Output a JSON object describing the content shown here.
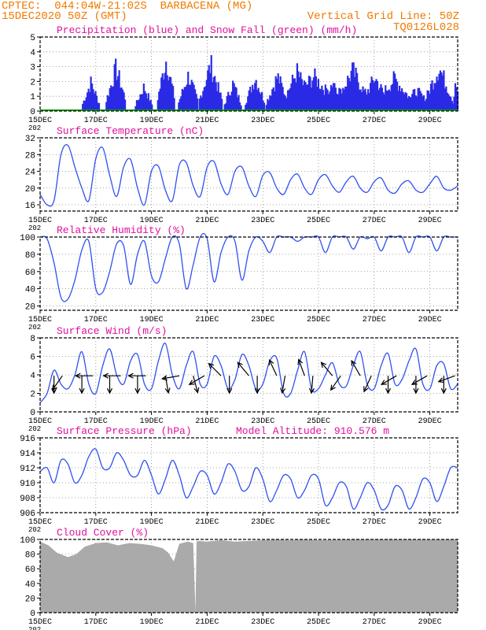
{
  "header": {
    "line1_left": "CPTEC:  044:04W-21:02S  BARBACENA (MG)",
    "line2_left": "15DEC2020 50Z (GMT)",
    "line2_right": "Vertical Grid Line: 50Z",
    "line3_right": "TQ0126L028"
  },
  "colors": {
    "header": "#f07a00",
    "title": "#e0119e",
    "line": "#3050f0",
    "precip": "#2a2ae6",
    "snow": "#00a000",
    "cloud": "#aaaaaa",
    "arrow": "#000000",
    "grid": "#888888"
  },
  "x_ticks": [
    "15DEC",
    "17DEC",
    "19DEC",
    "21DEC",
    "23DEC",
    "25DEC",
    "27DEC",
    "29DEC"
  ],
  "x_tick_days": [
    0,
    2,
    4,
    6,
    8,
    10,
    12,
    14
  ],
  "x_underlabel": "202",
  "x_range_days": [
    0,
    15
  ],
  "chart_data": [
    {
      "type": "bar",
      "title": "Precipitation (blue) and Snow Fall (green) (mm/h)",
      "ylim": [
        0,
        5
      ],
      "yticks": [
        "0",
        "1",
        "2",
        "3",
        "4",
        "5"
      ],
      "series": [
        {
          "name": "Precipitation",
          "color": "blue",
          "events": [
            [
              1.8,
              0.3,
              2.5
            ],
            [
              2.7,
              0.35,
              3.7
            ],
            [
              3.7,
              0.3,
              2.1
            ],
            [
              4.5,
              0.3,
              4.5
            ],
            [
              5.3,
              0.35,
              3.1
            ],
            [
              6.1,
              0.4,
              4.0
            ],
            [
              6.9,
              0.3,
              2.4
            ],
            [
              7.7,
              0.35,
              2.9
            ],
            [
              8.5,
              0.4,
              3.0
            ],
            [
              9.2,
              0.5,
              3.4
            ],
            [
              9.8,
              0.8,
              3.0
            ],
            [
              10.5,
              0.5,
              2.6
            ],
            [
              11.2,
              0.6,
              3.5
            ],
            [
              12.0,
              0.5,
              2.9
            ],
            [
              12.7,
              0.7,
              2.8
            ],
            [
              13.5,
              0.5,
              1.8
            ],
            [
              14.3,
              0.5,
              3.8
            ],
            [
              14.9,
              0.1,
              2.9
            ]
          ]
        },
        {
          "name": "Snow Fall",
          "color": "green",
          "values": [
            0
          ]
        }
      ]
    },
    {
      "type": "line",
      "title": "Surface Temperature (nC)",
      "ylim": [
        14.5,
        32
      ],
      "yticks": [
        "16",
        "20",
        "24",
        "28",
        "32"
      ],
      "ytick_values": [
        16,
        20,
        24,
        28,
        32
      ],
      "series": [
        {
          "name": "Temperature",
          "x": [
            0,
            0.25,
            0.5,
            0.75,
            1.0,
            1.25,
            1.5,
            1.75,
            2.0,
            2.25,
            2.5,
            2.75,
            3.0,
            3.25,
            3.5,
            3.75,
            4.0,
            4.25,
            4.5,
            4.75,
            5.0,
            5.25,
            5.5,
            5.75,
            6.0,
            6.25,
            6.5,
            6.75,
            7.0,
            7.25,
            7.5,
            7.75,
            8.0,
            8.25,
            8.5,
            8.75,
            9.0,
            9.25,
            9.5,
            9.75,
            10.0,
            10.25,
            10.5,
            10.75,
            11.0,
            11.25,
            11.5,
            11.75,
            12.0,
            12.25,
            12.5,
            12.75,
            13.0,
            13.25,
            13.5,
            13.75,
            14.0,
            14.25,
            14.5,
            14.75,
            15.0
          ],
          "y": [
            18.5,
            16,
            17,
            28,
            30.2,
            25,
            20,
            17,
            27,
            29.6,
            23,
            18,
            25,
            26.8,
            20,
            16,
            24,
            25.2,
            19.5,
            17,
            25.5,
            26.1,
            20.5,
            18,
            25,
            26.3,
            21,
            18.5,
            24,
            25,
            20.5,
            18,
            23,
            23.7,
            20,
            18.5,
            22,
            23.3,
            20,
            18.5,
            22,
            23.2,
            20.5,
            19,
            21.5,
            22.8,
            20,
            19,
            21.5,
            22.4,
            19.5,
            18.8,
            21,
            21.7,
            19.5,
            19,
            21,
            22.8,
            20,
            19.5,
            20.5
          ]
        }
      ]
    },
    {
      "type": "line",
      "title": "Relative Humidity (%)",
      "ylim": [
        15,
        100
      ],
      "yticks": [
        "20",
        "40",
        "60",
        "80",
        "100"
      ],
      "ytick_values": [
        20,
        40,
        60,
        80,
        100
      ],
      "series": [
        {
          "name": "Relative Humidity",
          "x": [
            0,
            0.25,
            0.5,
            0.75,
            1.0,
            1.25,
            1.5,
            1.75,
            2.0,
            2.25,
            2.5,
            2.75,
            3.0,
            3.25,
            3.5,
            3.75,
            4.0,
            4.25,
            4.5,
            4.75,
            5.0,
            5.25,
            5.5,
            5.75,
            6.0,
            6.25,
            6.5,
            6.75,
            7.0,
            7.25,
            7.5,
            7.75,
            8.0,
            8.25,
            8.5,
            8.75,
            9.0,
            9.25,
            9.5,
            9.75,
            10.0,
            10.25,
            10.5,
            10.75,
            11.0,
            11.25,
            11.5,
            11.75,
            12.0,
            12.25,
            12.5,
            12.75,
            13.0,
            13.25,
            13.5,
            13.75,
            14.0,
            14.25,
            14.5,
            14.75,
            15.0
          ],
          "y": [
            100,
            98,
            70,
            30,
            28,
            50,
            85,
            95,
            40,
            36,
            60,
            92,
            90,
            45,
            80,
            95,
            55,
            48,
            75,
            100,
            92,
            40,
            68,
            100,
            98,
            48,
            82,
            100,
            95,
            50,
            84,
            100,
            95,
            82,
            100,
            100,
            100,
            95,
            100,
            100,
            100,
            82,
            100,
            100,
            100,
            86,
            100,
            98,
            100,
            84,
            100,
            100,
            100,
            82,
            100,
            100,
            100,
            84,
            100,
            100,
            100
          ]
        }
      ]
    },
    {
      "type": "line",
      "title": "Surface Wind (m/s)",
      "ylim": [
        0,
        8
      ],
      "yticks": [
        "0",
        "2",
        "4",
        "6",
        "8"
      ],
      "ytick_values": [
        0,
        2,
        4,
        6,
        8
      ],
      "series": [
        {
          "name": "Wind Speed",
          "x": [
            0,
            0.25,
            0.5,
            0.75,
            1.0,
            1.25,
            1.5,
            1.75,
            2.0,
            2.25,
            2.5,
            2.75,
            3.0,
            3.25,
            3.5,
            3.75,
            4.0,
            4.25,
            4.5,
            4.75,
            5.0,
            5.25,
            5.5,
            5.75,
            6.0,
            6.25,
            6.5,
            6.75,
            7.0,
            7.25,
            7.5,
            7.75,
            8.0,
            8.25,
            8.5,
            8.75,
            9.0,
            9.25,
            9.5,
            9.75,
            10.0,
            10.25,
            10.5,
            10.75,
            11.0,
            11.25,
            11.5,
            11.75,
            12.0,
            12.25,
            12.5,
            12.75,
            13.0,
            13.25,
            13.5,
            13.75,
            14.0,
            14.25,
            14.5,
            14.75,
            15.0
          ],
          "y": [
            1,
            2,
            4.5,
            3,
            2.5,
            4,
            6.5,
            3,
            2,
            5,
            6.8,
            4,
            3,
            5.5,
            6.2,
            3,
            2.5,
            5.5,
            7.4,
            4,
            2.5,
            5,
            6.5,
            3,
            3,
            6,
            5,
            2.5,
            3.5,
            6.2,
            5,
            2.5,
            3,
            5.5,
            5.8,
            2,
            2,
            4.5,
            6.5,
            2.5,
            2.5,
            4,
            5.3,
            3,
            2.8,
            5,
            6.5,
            3,
            2.5,
            5,
            6.3,
            3,
            3.5,
            5.5,
            6.8,
            3,
            2.5,
            5,
            5.2,
            2.5,
            3
          ]
        }
      ],
      "wind_arrows": [
        [
          0.5,
          180
        ],
        [
          0.8,
          -145
        ],
        [
          1.5,
          180
        ],
        [
          1.9,
          -90
        ],
        [
          2.5,
          180
        ],
        [
          2.9,
          -90
        ],
        [
          3.5,
          180
        ],
        [
          3.8,
          -90
        ],
        [
          4.5,
          170
        ],
        [
          5.0,
          -100
        ],
        [
          5.5,
          165
        ],
        [
          5.9,
          -120
        ],
        [
          6.5,
          -45
        ],
        [
          6.8,
          180
        ],
        [
          7.5,
          -40
        ],
        [
          7.8,
          180
        ],
        [
          8.5,
          -25
        ],
        [
          8.8,
          190
        ],
        [
          9.5,
          -20
        ],
        [
          9.8,
          185
        ],
        [
          10.5,
          -40
        ],
        [
          10.8,
          215
        ],
        [
          11.5,
          -30
        ],
        [
          11.9,
          205
        ],
        [
          12.5,
          180
        ],
        [
          12.8,
          -120
        ],
        [
          13.5,
          180
        ],
        [
          13.9,
          -120
        ],
        [
          14.5,
          180
        ],
        [
          14.9,
          -110
        ]
      ]
    },
    {
      "type": "line",
      "title": "Surface Pressure (hPa)",
      "annotation": "Model Altitude: 910.576 m",
      "ylim": [
        906,
        916
      ],
      "yticks": [
        "906",
        "908",
        "910",
        "912",
        "914",
        "916"
      ],
      "ytick_values": [
        906,
        908,
        910,
        912,
        914,
        916
      ],
      "series": [
        {
          "name": "Pressure",
          "x": [
            0,
            0.25,
            0.5,
            0.75,
            1.0,
            1.25,
            1.5,
            1.75,
            2.0,
            2.25,
            2.5,
            2.75,
            3.0,
            3.25,
            3.5,
            3.75,
            4.0,
            4.25,
            4.5,
            4.75,
            5.0,
            5.25,
            5.5,
            5.75,
            6.0,
            6.25,
            6.5,
            6.75,
            7.0,
            7.25,
            7.5,
            7.75,
            8.0,
            8.25,
            8.5,
            8.75,
            9.0,
            9.25,
            9.5,
            9.75,
            10.0,
            10.25,
            10.5,
            10.75,
            11.0,
            11.25,
            11.5,
            11.75,
            12.0,
            12.25,
            12.5,
            12.75,
            13.0,
            13.25,
            13.5,
            13.75,
            14.0,
            14.25,
            14.5,
            14.75,
            15.0
          ],
          "y": [
            911.5,
            912,
            910,
            913,
            912.5,
            910,
            911,
            913.5,
            914.5,
            912,
            912,
            914,
            913,
            911,
            911,
            913,
            911,
            908.5,
            910.5,
            913,
            911,
            908,
            909.5,
            911.5,
            911,
            908.5,
            910,
            912.5,
            911.5,
            909,
            909.5,
            912,
            910.5,
            907.5,
            909,
            911,
            910.5,
            908,
            909,
            911,
            910.5,
            907,
            908,
            910,
            909.5,
            906.5,
            908,
            910,
            909,
            906.5,
            907,
            909.5,
            909,
            906.5,
            908,
            910.5,
            910,
            907.5,
            909.5,
            912,
            912
          ]
        }
      ]
    },
    {
      "type": "area",
      "title": "Cloud Cover (%)",
      "ylim": [
        0,
        100
      ],
      "yticks": [
        "0",
        "20",
        "40",
        "60",
        "80",
        "100"
      ],
      "ytick_values": [
        0,
        20,
        40,
        60,
        80,
        100
      ],
      "series": [
        {
          "name": "Cloud Cover",
          "x": [
            0,
            0.3,
            0.6,
            1.0,
            1.3,
            1.6,
            2.0,
            2.4,
            2.8,
            3.2,
            3.6,
            4.0,
            4.2,
            4.4,
            4.6,
            4.8,
            5.0,
            5.3,
            5.5,
            5.58,
            5.62,
            5.7,
            6.0,
            6.5,
            7.0,
            7.5,
            8.0,
            8.5,
            9.0,
            9.5,
            10.0,
            11.0,
            12.0,
            13.0,
            14.0,
            15.0
          ],
          "y": [
            97,
            92,
            82,
            76,
            80,
            90,
            95,
            96,
            92,
            95,
            94,
            92,
            90,
            88,
            82,
            70,
            94,
            97,
            95,
            2,
            97,
            98,
            97,
            99,
            97,
            98,
            99,
            100,
            99,
            100,
            99,
            100,
            100,
            100,
            100,
            100
          ]
        }
      ]
    }
  ]
}
